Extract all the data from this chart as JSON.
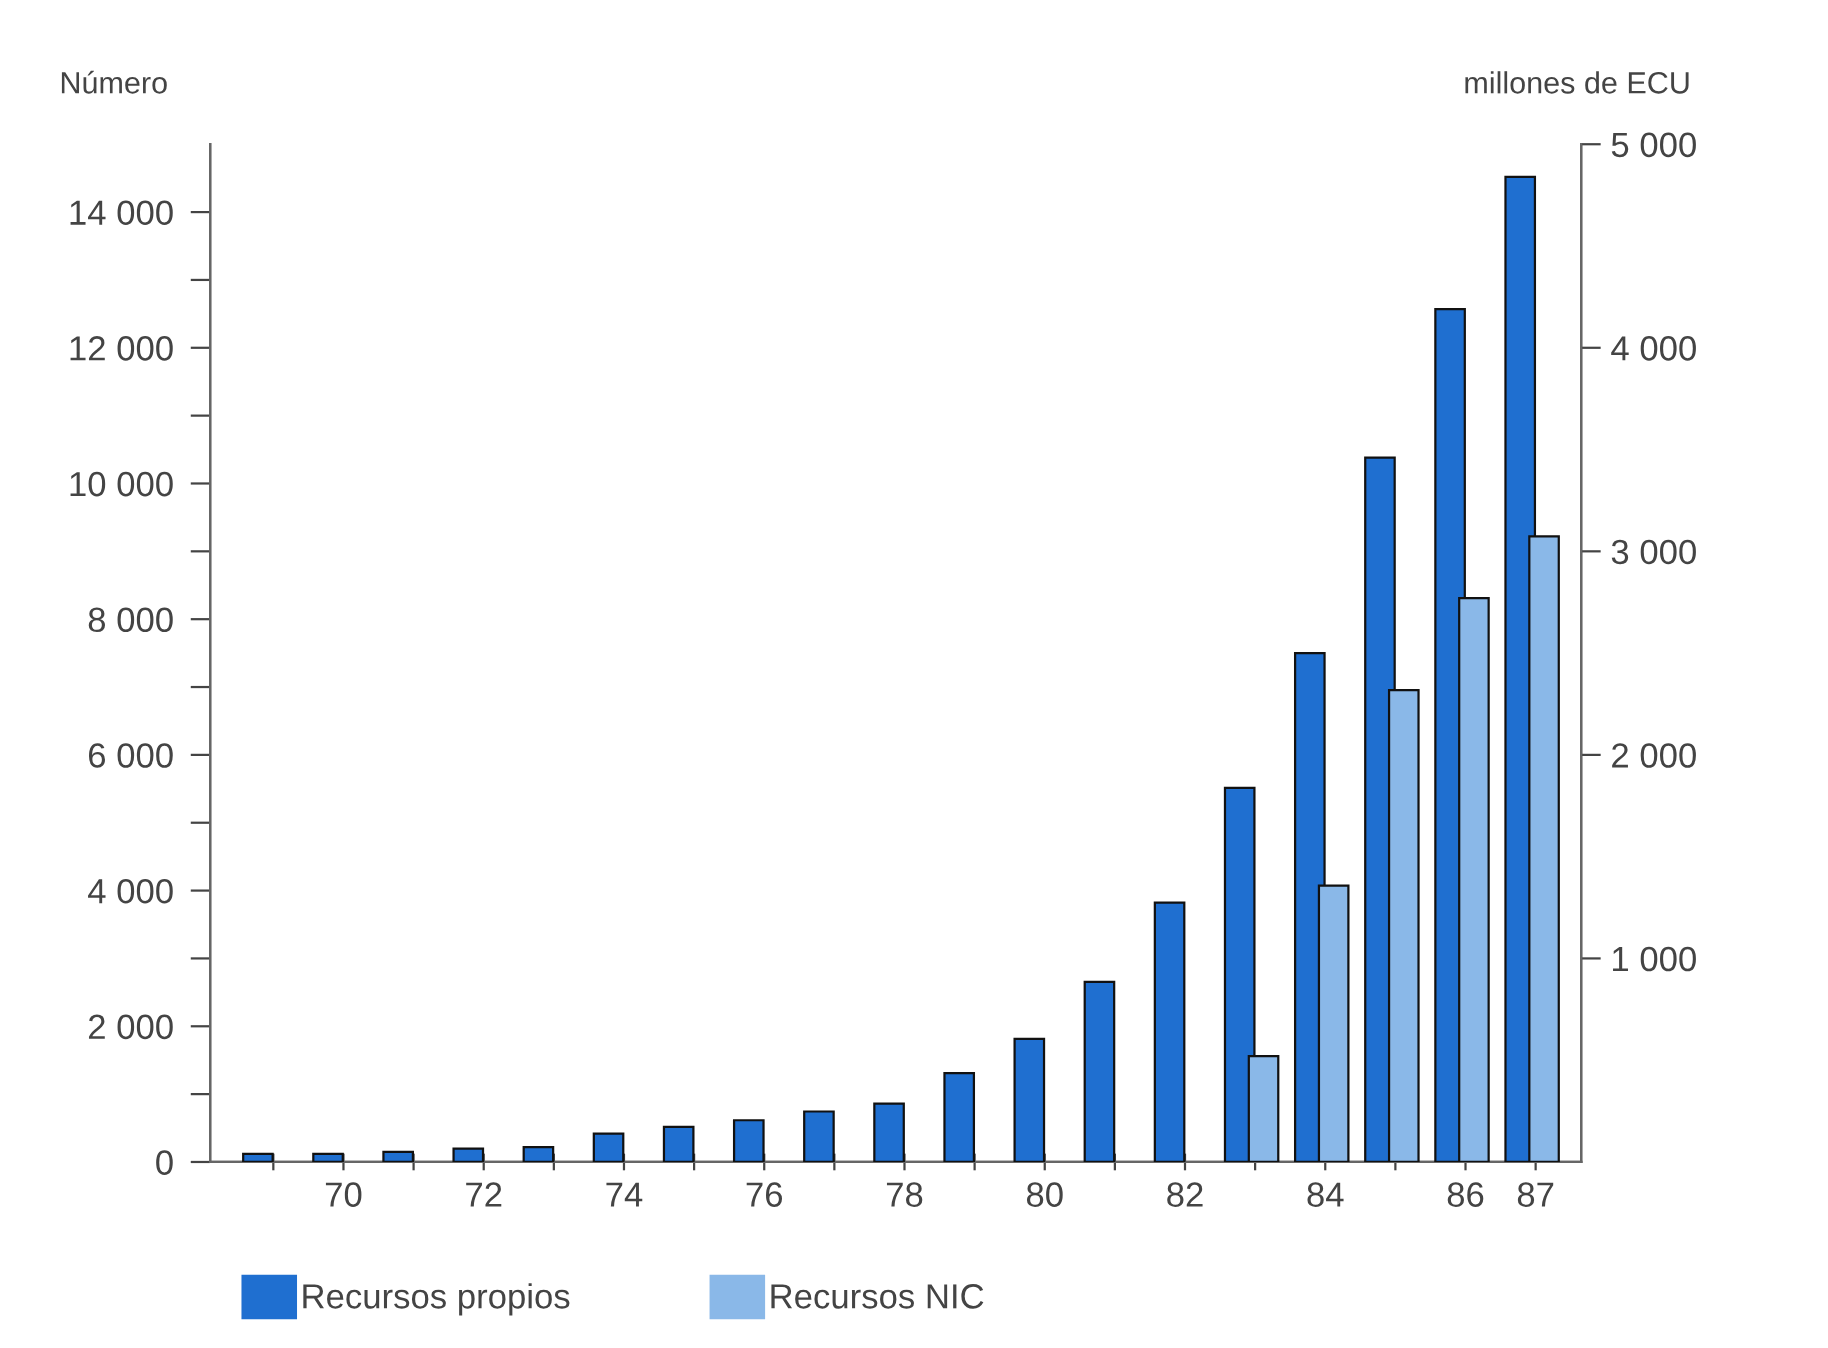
{
  "chart_data": {
    "type": "bar",
    "ylabel": "Número",
    "y2label": "millones de ECU",
    "categories": [
      null,
      "70",
      null,
      "72",
      null,
      "74",
      null,
      "76",
      null,
      "78",
      null,
      "80",
      null,
      "82",
      null,
      "84",
      null,
      "86",
      "87"
    ],
    "series": [
      {
        "name": "Recursos propios",
        "color": "#1f6fd0",
        "axis": "y2",
        "values": [
          40,
          40,
          50,
          66,
          73,
          139,
          172,
          205,
          248,
          287,
          436,
          605,
          885,
          1274,
          1838,
          2500,
          3460,
          4190,
          4840
        ]
      },
      {
        "name": "Recursos NIC",
        "color": "#8ab8e8",
        "axis": "y2",
        "values": [
          null,
          null,
          null,
          null,
          null,
          null,
          null,
          null,
          null,
          null,
          null,
          null,
          null,
          null,
          520,
          1358,
          2318,
          2770,
          3074
        ]
      }
    ],
    "ylim": [
      0,
      15000
    ],
    "yticks": [
      0,
      {
        "value": 1000,
        "label": null
      },
      {
        "value": 2000,
        "label": "2 000"
      },
      {
        "value": 3000,
        "label": null
      },
      {
        "value": 4000,
        "label": "4 000"
      },
      {
        "value": 5000,
        "label": null
      },
      {
        "value": 6000,
        "label": "6 000"
      },
      {
        "value": 7000,
        "label": null
      },
      {
        "value": 8000,
        "label": "8 000"
      },
      {
        "value": 9000,
        "label": null
      },
      {
        "value": 10000,
        "label": "10 000"
      },
      {
        "value": 11000,
        "label": null
      },
      {
        "value": 12000,
        "label": "12 000"
      },
      {
        "value": 13000,
        "label": null
      },
      {
        "value": 14000,
        "label": "14 000"
      }
    ],
    "y2lim": [
      0,
      5000
    ],
    "y2ticks": [
      {
        "value": 1000,
        "label": "1 000"
      },
      {
        "value": 2000,
        "label": "2 000"
      },
      {
        "value": 3000,
        "label": "3 000"
      },
      {
        "value": 4000,
        "label": "4 000"
      },
      {
        "value": 5000,
        "label": "5 000"
      }
    ],
    "legend": "bottom",
    "grid": false
  }
}
